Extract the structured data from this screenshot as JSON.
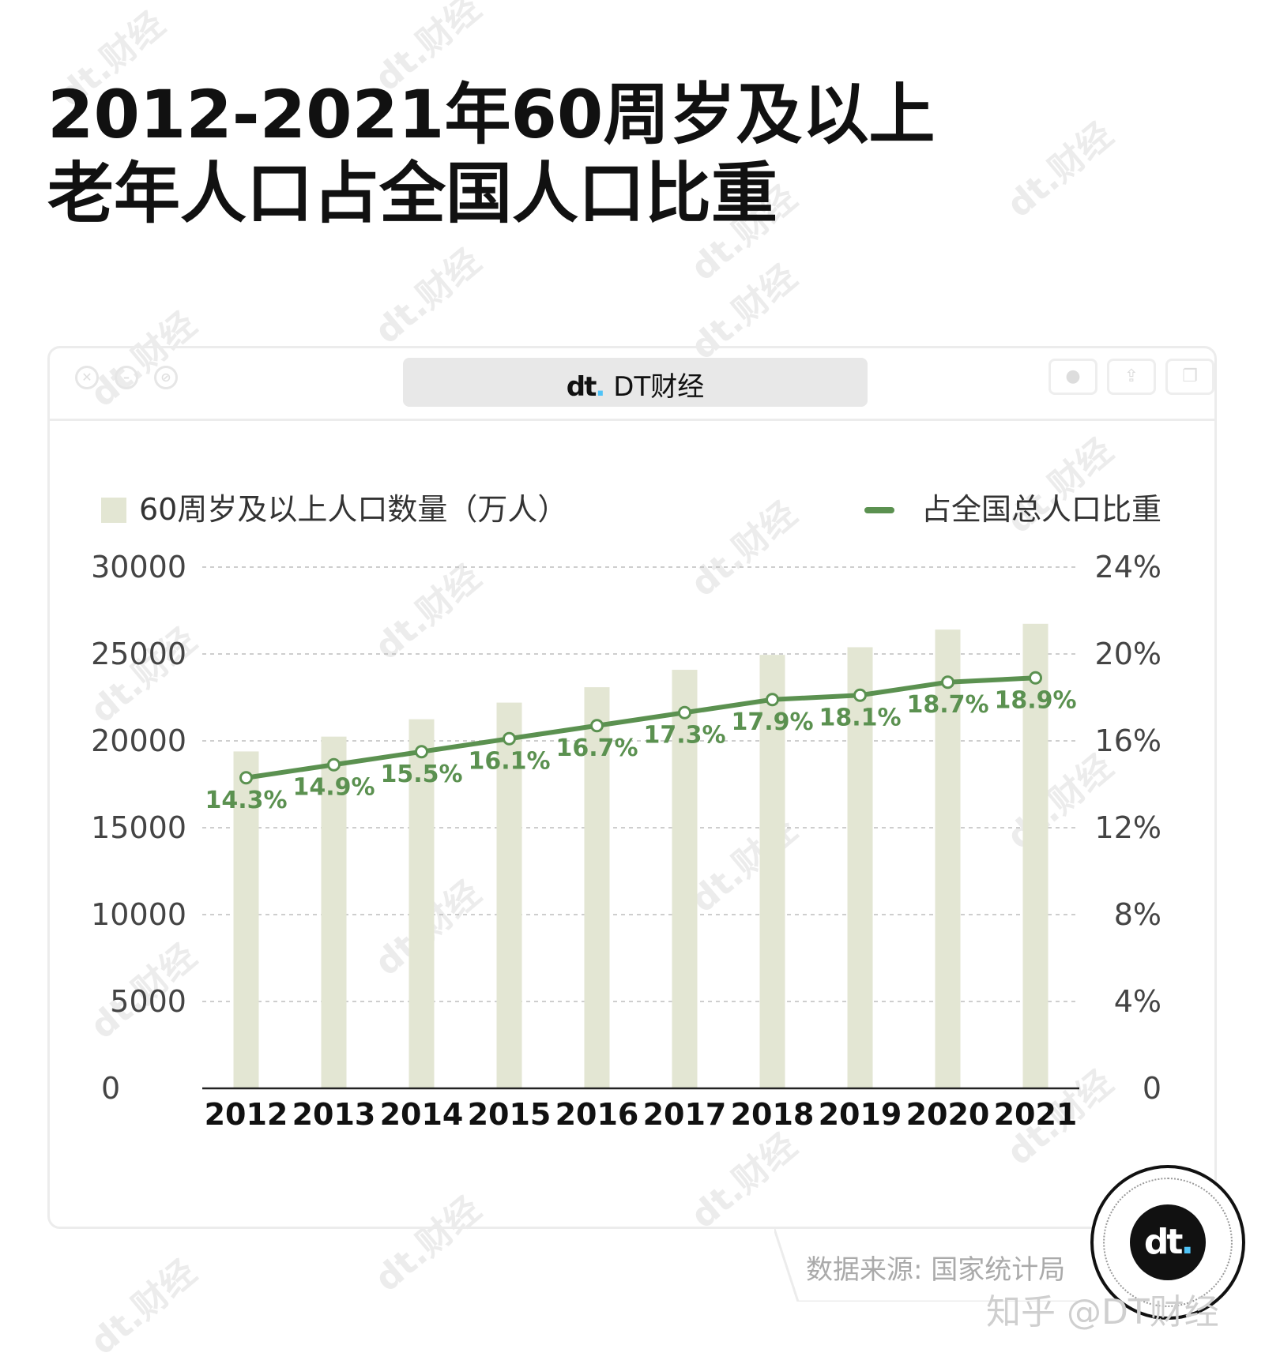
{
  "title": {
    "line1": "2012-2021年60周岁及以上",
    "line2": "老年人口占全国人口比重"
  },
  "brand": {
    "logo": "dt",
    "name": "DT财经"
  },
  "watermark_text": "dt.财经",
  "source": "数据来源: 国家统计局",
  "zhihu": "知乎 @DT财经",
  "colors": {
    "bar": "#e3e6d3",
    "line": "#5b9150",
    "label": "#5b9150"
  },
  "chart_data": {
    "type": "bar+line",
    "categories": [
      "2012",
      "2013",
      "2014",
      "2015",
      "2016",
      "2017",
      "2018",
      "2019",
      "2020",
      "2021"
    ],
    "series": [
      {
        "name": "60周岁及以上人口数量（万人）",
        "type": "bar",
        "axis": "left",
        "values": [
          19390,
          20243,
          21242,
          22200,
          23086,
          24090,
          24949,
          25388,
          26402,
          26736
        ]
      },
      {
        "name": "占全国总人口比重",
        "type": "line",
        "axis": "right",
        "values": [
          14.3,
          14.9,
          15.5,
          16.1,
          16.7,
          17.3,
          17.9,
          18.1,
          18.7,
          18.9
        ],
        "labels": [
          "14.3%",
          "14.9%",
          "15.5%",
          "16.1%",
          "16.7%",
          "17.3%",
          "17.9%",
          "18.1%",
          "18.7%",
          "18.9%"
        ]
      }
    ],
    "y_left": {
      "ticks": [
        0,
        5000,
        10000,
        15000,
        20000,
        25000,
        30000
      ],
      "ylim": [
        0,
        30000
      ]
    },
    "y_right": {
      "ticks": [
        "0",
        "4%",
        "8%",
        "12%",
        "16%",
        "20%",
        "24%"
      ],
      "ylim": [
        0,
        24
      ]
    },
    "grid": true,
    "legend": {
      "placement": "top",
      "items": [
        {
          "label": "60周岁及以上人口数量（万人）",
          "kind": "bar"
        },
        {
          "label": "占全国总人口比重",
          "kind": "line"
        }
      ]
    }
  }
}
